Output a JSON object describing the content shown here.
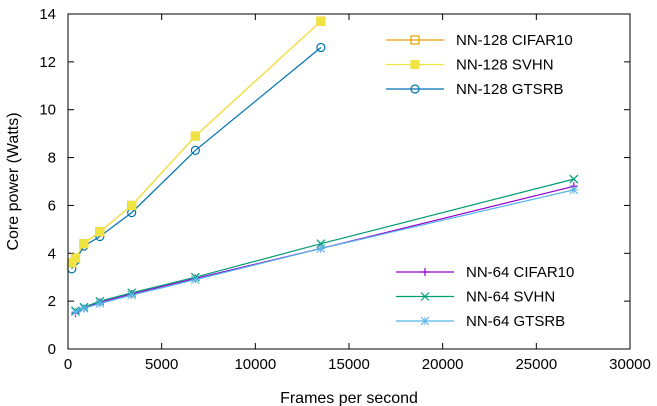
{
  "chart_data": {
    "type": "line",
    "xlabel": "Frames per second",
    "ylabel": "Core power (Watts)",
    "xlim": [
      0,
      30000
    ],
    "ylim": [
      0,
      14
    ],
    "x_ticks": [
      0,
      5000,
      10000,
      15000,
      20000,
      25000,
      30000
    ],
    "y_ticks": [
      0,
      2,
      4,
      6,
      8,
      10,
      12,
      14
    ],
    "grid": false,
    "legends": [
      {
        "placement": "top-right",
        "series": [
          "NN-128 CIFAR10",
          "NN-128 SVHN",
          "NN-128 GTSRB"
        ]
      },
      {
        "placement": "bottom-right",
        "series": [
          "NN-64 CIFAR10",
          "NN-64 SVHN",
          "NN-64 GTSRB"
        ]
      }
    ],
    "series": [
      {
        "name": "NN-128 CIFAR10",
        "color": "#e69f00",
        "marker": "open-square",
        "x": [
          200,
          400,
          850,
          1700,
          3400,
          6800,
          13500
        ],
        "y": [
          3.6,
          3.8,
          4.4,
          4.9,
          6.0,
          8.9,
          13.7
        ]
      },
      {
        "name": "NN-128 SVHN",
        "color": "#f0e442",
        "marker": "filled-square",
        "x": [
          200,
          400,
          850,
          1700,
          3400,
          6800,
          13500
        ],
        "y": [
          3.6,
          3.8,
          4.4,
          4.9,
          6.0,
          8.9,
          13.7
        ]
      },
      {
        "name": "NN-128 GTSRB",
        "color": "#0072b2",
        "marker": "open-circle",
        "x": [
          200,
          400,
          850,
          1700,
          3400,
          6800,
          13500
        ],
        "y": [
          3.35,
          3.7,
          4.3,
          4.7,
          5.7,
          8.3,
          12.6
        ]
      },
      {
        "name": "NN-64 CIFAR10",
        "color": "#9400d3",
        "marker": "plus",
        "x": [
          400,
          850,
          1700,
          3400,
          6800,
          13500,
          27000
        ],
        "y": [
          1.5,
          1.7,
          1.95,
          2.3,
          2.95,
          4.2,
          6.8
        ]
      },
      {
        "name": "NN-64 SVHN",
        "color": "#009e73",
        "marker": "cross",
        "x": [
          400,
          850,
          1700,
          3400,
          6800,
          13500,
          27000
        ],
        "y": [
          1.6,
          1.75,
          2.0,
          2.35,
          3.0,
          4.4,
          7.1
        ]
      },
      {
        "name": "NN-64 GTSRB",
        "color": "#56b4e9",
        "marker": "star",
        "x": [
          400,
          850,
          1700,
          3400,
          6800,
          13500,
          27000
        ],
        "y": [
          1.55,
          1.7,
          1.9,
          2.25,
          2.9,
          4.2,
          6.65
        ]
      }
    ]
  }
}
